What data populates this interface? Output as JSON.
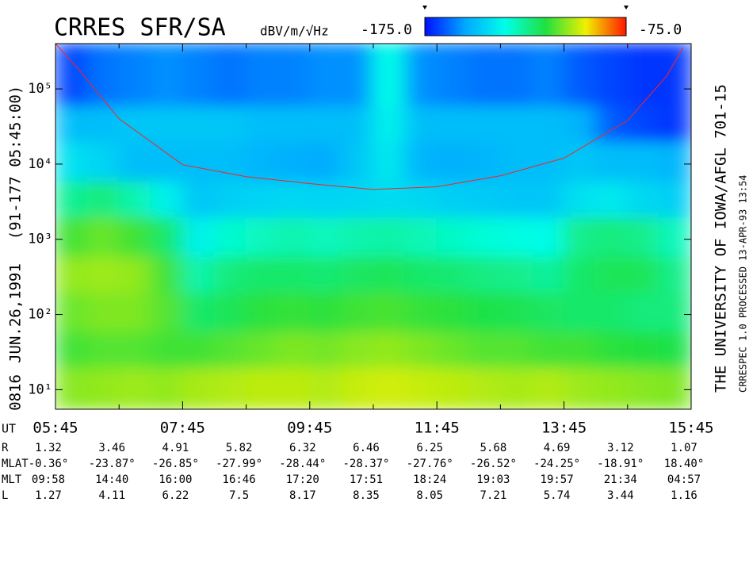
{
  "chart_data": {
    "type": "spectrogram",
    "title": "CRRES SFR/SA",
    "colorbar_label": "dBV/m/√Hz",
    "zlim": [
      {
        "value": -175,
        "label": "-175.0"
      },
      {
        "value": -75,
        "label": "-75.0"
      }
    ],
    "colormap": [
      "#0010ff",
      "#00a8ff",
      "#00ffe8",
      "#20e040",
      "#f0f000",
      "#ff1800"
    ],
    "side_labels": [
      "0816",
      "JUN.26,1991",
      "(91-177 05:45:00)"
    ],
    "right_labels": [
      "THE UNIVERSITY OF IOWA/AFGL 701-15",
      "CRRESPEC 1.0  PROCESSED 13-APR-93  13:54"
    ],
    "log_y": true,
    "xlim": [
      5.75,
      15.75
    ],
    "ylim": [
      5.5,
      400000
    ],
    "xticks": [
      {
        "value": 5.75,
        "label": "05:45"
      },
      {
        "value": 7.75,
        "label": "07:45"
      },
      {
        "value": 9.75,
        "label": "09:45"
      },
      {
        "value": 11.75,
        "label": "11:45"
      },
      {
        "value": 13.75,
        "label": "13:45"
      },
      {
        "value": 15.75,
        "label": "15:45"
      }
    ],
    "xminorticks": [
      6.75,
      8.75,
      10.75,
      12.75,
      14.75
    ],
    "yticks": [
      {
        "value": 10,
        "label": "10¹"
      },
      {
        "value": 100,
        "label": "10²"
      },
      {
        "value": 1000,
        "label": "10³"
      },
      {
        "value": 10000,
        "label": "10⁴"
      },
      {
        "value": 100000,
        "label": "10⁵"
      }
    ],
    "xbins": [
      5.75,
      6.25,
      6.75,
      7.25,
      7.75,
      8.25,
      8.75,
      9.25,
      9.75,
      10.25,
      10.75,
      11.25,
      11.75,
      12.25,
      12.75,
      13.25,
      13.75,
      14.25,
      14.75,
      15.25,
      15.75
    ],
    "ybins": [
      5.5,
      20,
      60,
      200,
      600,
      2000,
      6000,
      20000,
      60000,
      400000
    ],
    "z": [
      [
        -105,
        -104,
        -103,
        -104,
        -102,
        -101,
        -100,
        -100,
        -101,
        -99,
        -98,
        -99,
        -100,
        -101,
        -102,
        -101,
        -103,
        -104,
        -105,
        -106
      ],
      [
        -112,
        -110,
        -110,
        -112,
        -112,
        -110,
        -108,
        -106,
        -107,
        -105,
        -104,
        -106,
        -108,
        -110,
        -110,
        -112,
        -112,
        -114,
        -115,
        -116
      ],
      [
        -108,
        -106,
        -106,
        -110,
        -120,
        -118,
        -114,
        -113,
        -114,
        -112,
        -111,
        -113,
        -114,
        -116,
        -117,
        -119,
        -120,
        -120,
        -122,
        -122
      ],
      [
        -104,
        -103,
        -104,
        -112,
        -128,
        -122,
        -120,
        -120,
        -121,
        -119,
        -118,
        -120,
        -121,
        -123,
        -124,
        -126,
        -120,
        -118,
        -118,
        -124
      ],
      [
        -112,
        -108,
        -112,
        -120,
        -138,
        -132,
        -130,
        -128,
        -130,
        -128,
        -127,
        -129,
        -131,
        -133,
        -134,
        -136,
        -124,
        -122,
        -124,
        -130
      ],
      [
        -125,
        -122,
        -128,
        -138,
        -148,
        -146,
        -145,
        -144,
        -145,
        -144,
        -143,
        -144,
        -146,
        -147,
        -148,
        -148,
        -142,
        -140,
        -144,
        -146
      ],
      [
        -142,
        -145,
        -150,
        -150,
        -150,
        -150,
        -152,
        -153,
        -154,
        -148,
        -140,
        -152,
        -153,
        -152,
        -150,
        -150,
        -148,
        -150,
        -150,
        -152
      ],
      [
        -150,
        -150,
        -148,
        -148,
        -148,
        -148,
        -150,
        -150,
        -150,
        -150,
        -138,
        -150,
        -150,
        -150,
        -150,
        -150,
        -152,
        -165,
        -168,
        -170
      ],
      [
        -168,
        -162,
        -160,
        -158,
        -160,
        -162,
        -160,
        -160,
        -158,
        -158,
        -135,
        -158,
        -160,
        -162,
        -162,
        -160,
        -165,
        -168,
        -170,
        -170
      ]
    ],
    "curve": {
      "color": "#ff2020",
      "x": [
        5.75,
        6.12,
        6.75,
        7.75,
        8.75,
        9.75,
        10.75,
        11.75,
        12.75,
        13.75,
        14.75,
        15.37,
        15.62
      ],
      "values": [
        400000,
        180000,
        40000,
        9800,
        6800,
        5500,
        4600,
        5000,
        7000,
        12000,
        38000,
        150000,
        350000
      ]
    },
    "ephemeris": {
      "x_label": "UT",
      "x": [
        5.75,
        6.75,
        7.75,
        8.75,
        9.75,
        10.75,
        11.75,
        12.75,
        13.75,
        14.75,
        15.75
      ],
      "rows": [
        {
          "name": "R",
          "values": [
            1.32,
            3.46,
            4.91,
            5.82,
            6.32,
            6.46,
            6.25,
            5.68,
            4.69,
            3.12,
            1.07
          ]
        },
        {
          "name": "MLAT",
          "values": [
            -0.36,
            -23.87,
            -26.85,
            -27.99,
            -28.44,
            -28.37,
            -27.76,
            -26.52,
            -24.25,
            -18.91,
            18.4
          ],
          "value_labels": [
            "-0.36°",
            "-23.87°",
            "-26.85°",
            "-27.99°",
            "-28.44°",
            "-28.37°",
            "-27.76°",
            "-26.52°",
            "-24.25°",
            "-18.91°",
            "18.40°"
          ]
        },
        {
          "name": "MLT",
          "value_labels": [
            "09:58",
            "14:40",
            "16:00",
            "16:46",
            "17:20",
            "17:51",
            "18:24",
            "19:03",
            "19:57",
            "21:34",
            "04:57"
          ]
        },
        {
          "name": "L",
          "values": [
            1.27,
            4.11,
            6.22,
            7.5,
            8.17,
            8.35,
            8.05,
            7.21,
            5.74,
            3.44,
            1.16
          ]
        }
      ]
    }
  }
}
